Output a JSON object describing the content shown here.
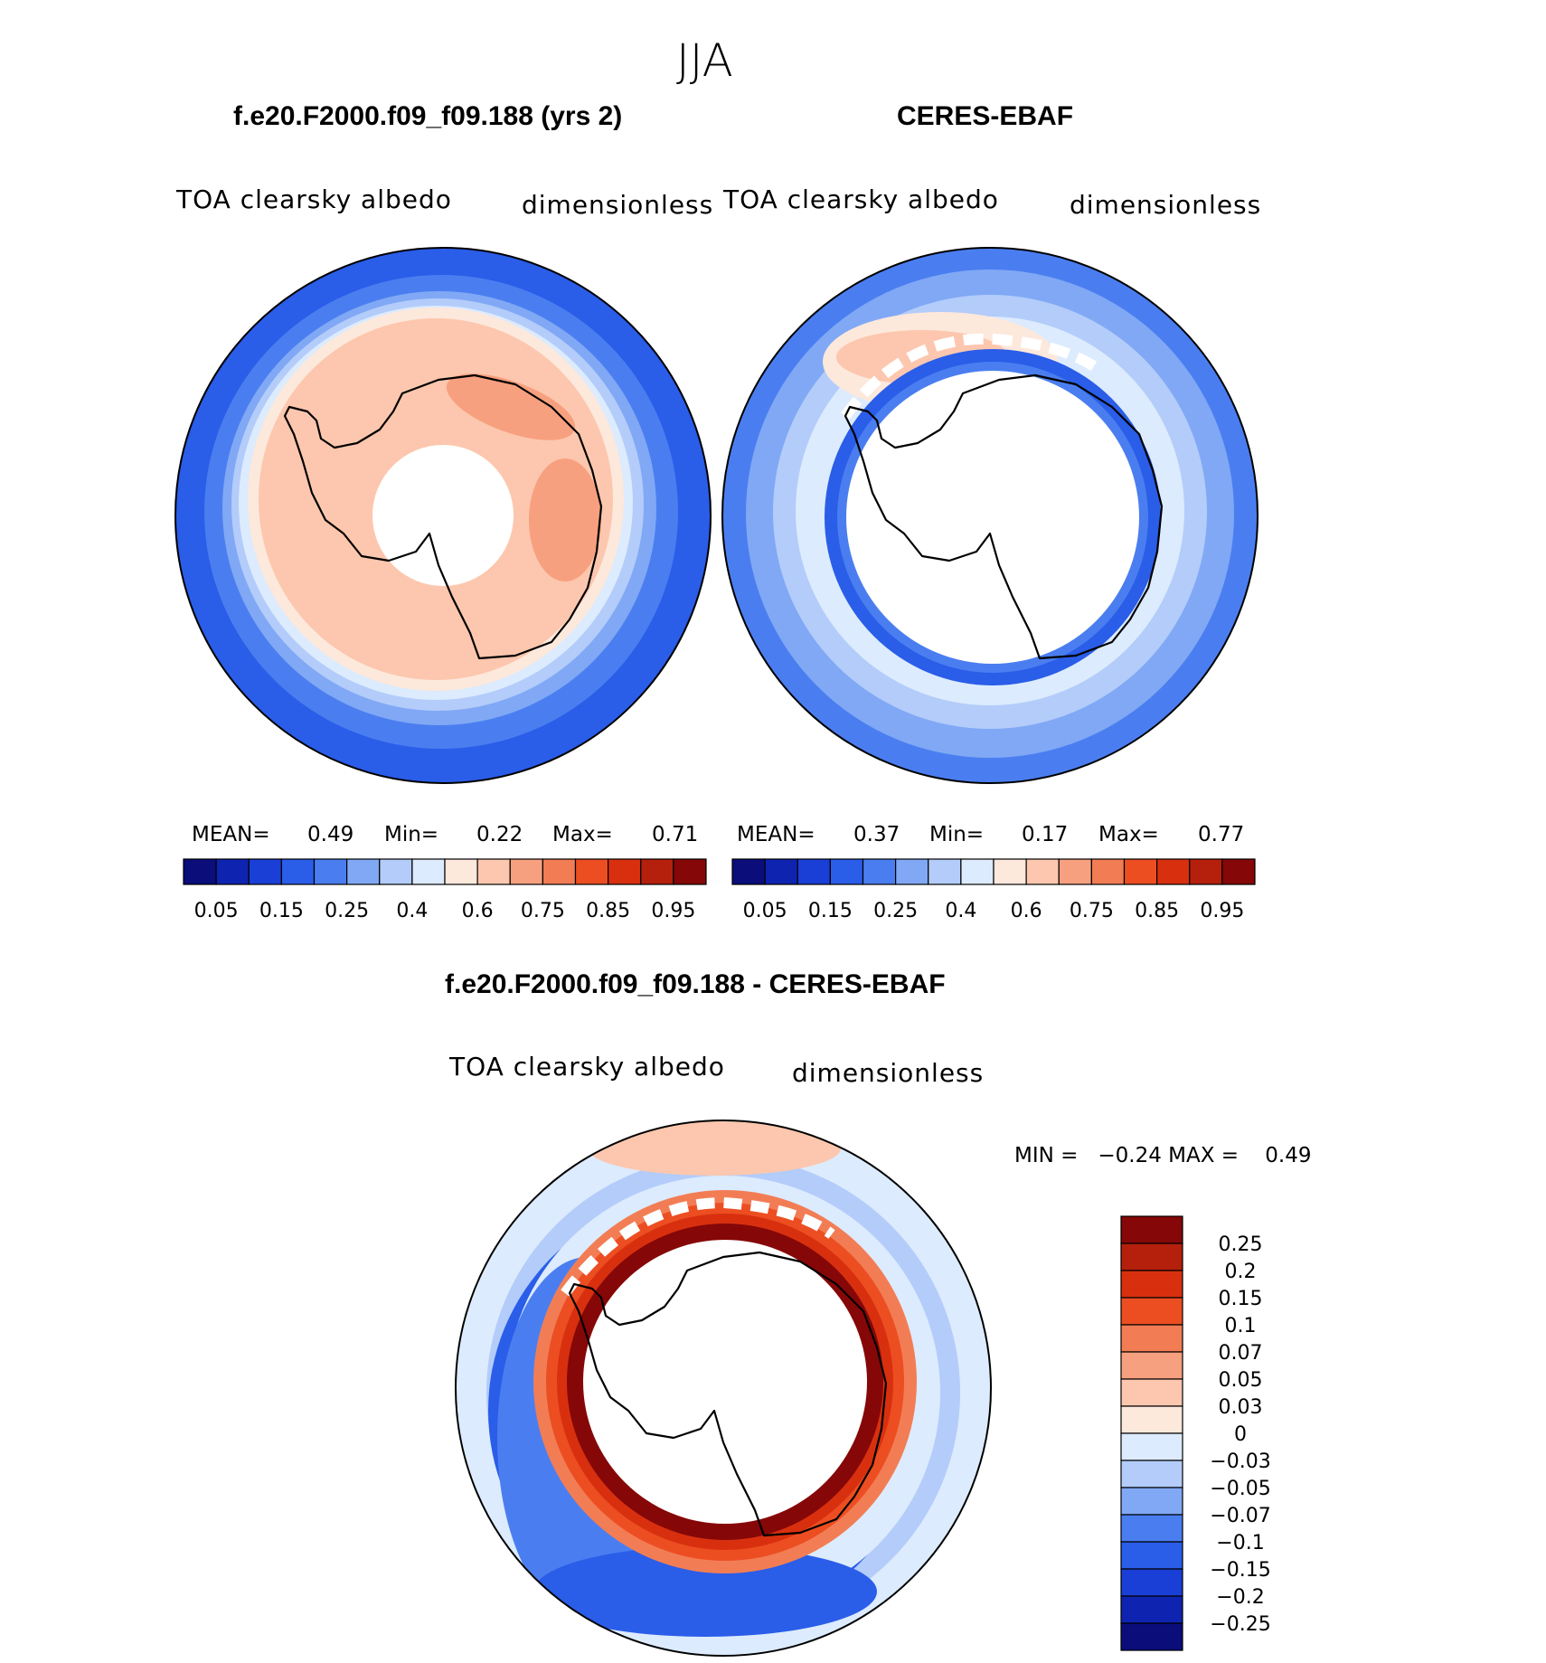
{
  "season_title": "JJA",
  "panels": [
    {
      "id": "model",
      "title": "f.e20.F2000.f09_f09.188 (yrs 2)",
      "variable": "TOA clearsky albedo",
      "units": "dimensionless",
      "stats": {
        "mean_label": "MEAN=",
        "mean": "0.49",
        "min_label": "Min=",
        "min": "0.22",
        "max_label": "Max=",
        "max": "0.71"
      }
    },
    {
      "id": "obs",
      "title": "CERES-EBAF",
      "variable": "TOA clearsky albedo",
      "units": "dimensionless",
      "stats": {
        "mean_label": "MEAN=",
        "mean": "0.37",
        "min_label": "Min=",
        "min": "0.17",
        "max_label": "Max=",
        "max": "0.77"
      }
    }
  ],
  "difference": {
    "title": "f.e20.F2000.f09_f09.188 - CERES-EBAF",
    "variable": "TOA clearsky albedo",
    "units": "dimensionless",
    "minmax": "MIN =   −0.24 MAX =    0.49"
  },
  "colorbar_abs": {
    "colors": [
      "#0a0d7a",
      "#0e24b0",
      "#1a3fd6",
      "#2a5de8",
      "#4a7ef0",
      "#80a8f5",
      "#b3ccfa",
      "#dcebfd",
      "#fde8dc",
      "#fcc7ae",
      "#f7a07f",
      "#f27d55",
      "#ec4e22",
      "#d8300f",
      "#b4200c",
      "#860707"
    ],
    "labels": [
      "0.05",
      "0.15",
      "0.25",
      "0.4",
      "0.6",
      "0.75",
      "0.85",
      "0.95"
    ]
  },
  "colorbar_diff": {
    "colors": [
      "#860707",
      "#b4200c",
      "#d8300f",
      "#ec4e22",
      "#f27d55",
      "#f7a07f",
      "#fcc7ae",
      "#fde8dc",
      "#dcebfd",
      "#b3ccfa",
      "#80a8f5",
      "#4a7ef0",
      "#2a5de8",
      "#1a3fd6",
      "#0e24b0",
      "#0a0d7a"
    ],
    "labels": [
      "0.25",
      "0.2",
      "0.15",
      "0.1",
      "0.07",
      "0.05",
      "0.03",
      "0",
      "−0.03",
      "−0.05",
      "−0.07",
      "−0.1",
      "−0.15",
      "−0.2",
      "−0.25"
    ]
  }
}
